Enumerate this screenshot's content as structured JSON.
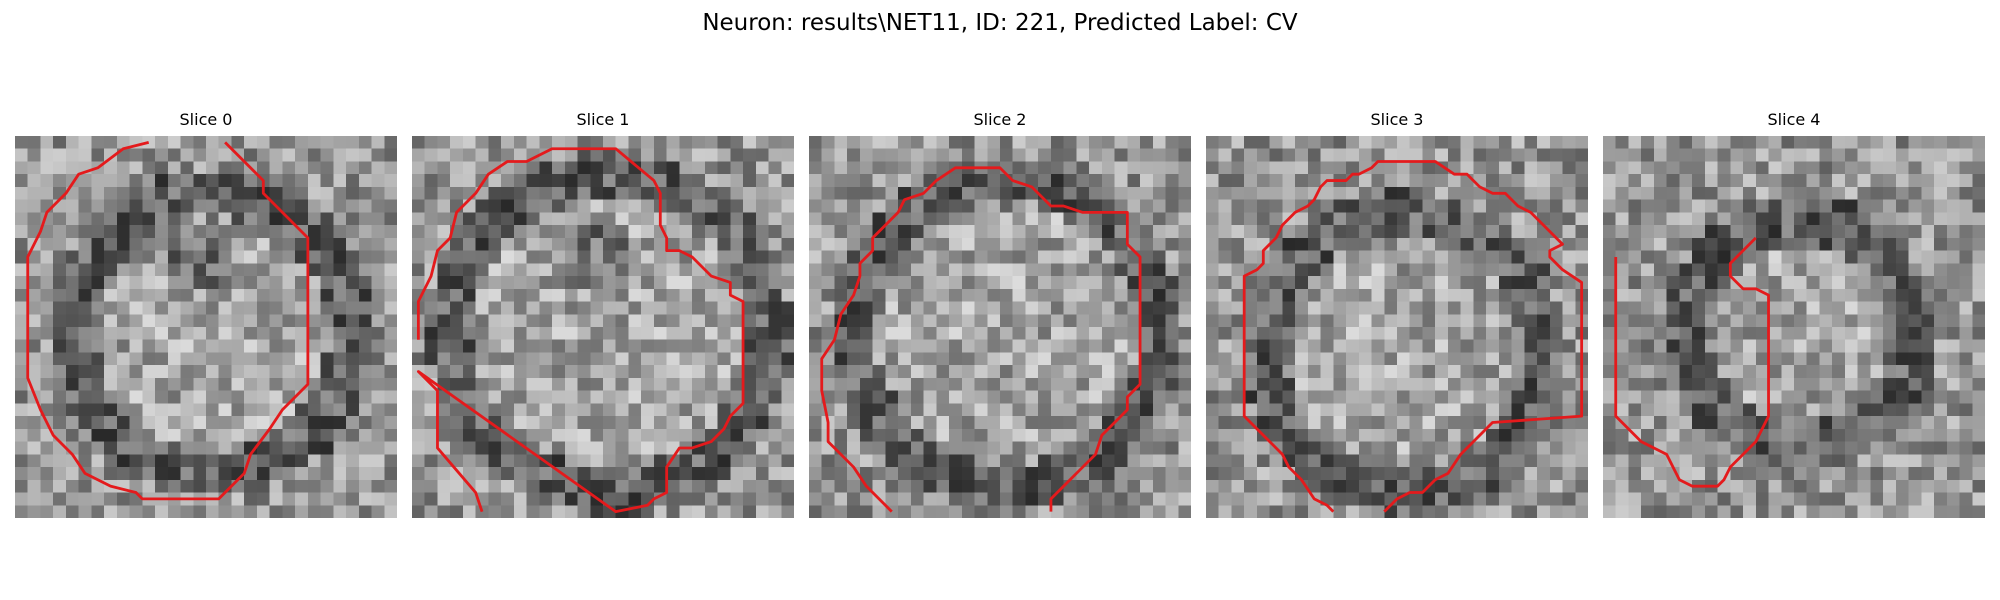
{
  "figure": {
    "title": "Neuron: results\\NET11, ID: 221, Predicted Label: CV"
  },
  "colors": {
    "contour": "#e41a1c"
  },
  "grid_size": 30,
  "slices": [
    {
      "label": "Slice 0",
      "seed": 11,
      "contour": [
        [
          10.5,
          0.5
        ],
        [
          8.5,
          1
        ],
        [
          6.5,
          2.5
        ],
        [
          5,
          3
        ],
        [
          4,
          4.5
        ],
        [
          2.5,
          6
        ],
        [
          2,
          7.5
        ],
        [
          1,
          9.5
        ],
        [
          1,
          19
        ],
        [
          2,
          21.5
        ],
        [
          3,
          23.5
        ],
        [
          4.5,
          25
        ],
        [
          5.5,
          26.5
        ],
        [
          7.5,
          27.5
        ],
        [
          9.5,
          28
        ],
        [
          10,
          28.5
        ],
        [
          16,
          28.5
        ],
        [
          17.5,
          27
        ],
        [
          18,
          26.5
        ],
        [
          18.5,
          25
        ],
        [
          20,
          23
        ],
        [
          21,
          21.5
        ],
        [
          23,
          19.5
        ],
        [
          23,
          8
        ],
        [
          19.5,
          4.5
        ],
        [
          19.5,
          3.5
        ],
        [
          16.5,
          0.5
        ]
      ]
    },
    {
      "label": "Slice 1",
      "seed": 23,
      "contour": [
        [
          0.5,
          16
        ],
        [
          0.5,
          13
        ],
        [
          1.5,
          11
        ],
        [
          2,
          9
        ],
        [
          3,
          8
        ],
        [
          3.5,
          6
        ],
        [
          5,
          4.5
        ],
        [
          6,
          3
        ],
        [
          7.5,
          2
        ],
        [
          9,
          2
        ],
        [
          11,
          1
        ],
        [
          16,
          1
        ],
        [
          19,
          3.5
        ],
        [
          19.5,
          4.5
        ],
        [
          19.5,
          7
        ],
        [
          20,
          8
        ],
        [
          20,
          9
        ],
        [
          21,
          9
        ],
        [
          22,
          9.5
        ],
        [
          23.5,
          11
        ],
        [
          25,
          11.5
        ],
        [
          25,
          12.5
        ],
        [
          26,
          13
        ],
        [
          26,
          21
        ],
        [
          25,
          22
        ],
        [
          24.5,
          23
        ],
        [
          23.5,
          24
        ],
        [
          22,
          24.5
        ],
        [
          21,
          24.5
        ],
        [
          20,
          26
        ],
        [
          20,
          28
        ],
        [
          19,
          28.5
        ],
        [
          18.5,
          29
        ],
        [
          16,
          29.5
        ],
        [
          0.5,
          18.5
        ],
        [
          2,
          20
        ],
        [
          2,
          24.5
        ],
        [
          5,
          28
        ],
        [
          5.5,
          29.5
        ]
      ]
    },
    {
      "label": "Slice 2",
      "seed": 37,
      "contour": [
        [
          6.5,
          29.5
        ],
        [
          4.5,
          27.5
        ],
        [
          3.5,
          26
        ],
        [
          1.5,
          24
        ],
        [
          1.5,
          22.5
        ],
        [
          1,
          20
        ],
        [
          1,
          17.5
        ],
        [
          2,
          16
        ],
        [
          2.5,
          14
        ],
        [
          3.5,
          12.5
        ],
        [
          4,
          11
        ],
        [
          4,
          10
        ],
        [
          5,
          9
        ],
        [
          5,
          8
        ],
        [
          6,
          7
        ],
        [
          7,
          6
        ],
        [
          7.5,
          5
        ],
        [
          9,
          4.5
        ],
        [
          10,
          3.5
        ],
        [
          11.5,
          2.5
        ],
        [
          15,
          2.5
        ],
        [
          16,
          3.5
        ],
        [
          17.5,
          4
        ],
        [
          19,
          5.5
        ],
        [
          20,
          5.5
        ],
        [
          21.5,
          6
        ],
        [
          25,
          6
        ],
        [
          25,
          8.5
        ],
        [
          26,
          9.5
        ],
        [
          26,
          19.5
        ],
        [
          25,
          20.5
        ],
        [
          25,
          21.5
        ],
        [
          24,
          22.5
        ],
        [
          23,
          23.5
        ],
        [
          22.5,
          25
        ],
        [
          21.5,
          26
        ],
        [
          20,
          27.5
        ],
        [
          19.5,
          28
        ],
        [
          19,
          28.5
        ],
        [
          19,
          29.5
        ]
      ]
    },
    {
      "label": "Slice 3",
      "seed": 53,
      "contour": [
        [
          14,
          29.5
        ],
        [
          15,
          28.5
        ],
        [
          16,
          28
        ],
        [
          17,
          28
        ],
        [
          18,
          27
        ],
        [
          19,
          26.5
        ],
        [
          20,
          25
        ],
        [
          21,
          24
        ],
        [
          21.5,
          23.5
        ],
        [
          22.5,
          22.5
        ],
        [
          29.5,
          22
        ],
        [
          29.5,
          11.5
        ],
        [
          28,
          10.5
        ],
        [
          27,
          9.5
        ],
        [
          27,
          9
        ],
        [
          28,
          8.5
        ],
        [
          26.5,
          7
        ],
        [
          25.5,
          6
        ],
        [
          24.5,
          5.5
        ],
        [
          23.5,
          4.5
        ],
        [
          22.5,
          4.5
        ],
        [
          21.5,
          4
        ],
        [
          20.5,
          3
        ],
        [
          19.5,
          3
        ],
        [
          18,
          2
        ],
        [
          14.5,
          2
        ],
        [
          13.5,
          2
        ],
        [
          13,
          2.5
        ],
        [
          12,
          3
        ],
        [
          11.5,
          3
        ],
        [
          11,
          3.5
        ],
        [
          9.5,
          3.5
        ],
        [
          9,
          4
        ],
        [
          8.5,
          5
        ],
        [
          8,
          5.5
        ],
        [
          7,
          6
        ],
        [
          6.5,
          6.5
        ],
        [
          6,
          7
        ],
        [
          5.5,
          8
        ],
        [
          4.5,
          9
        ],
        [
          4.5,
          10
        ],
        [
          4,
          10.5
        ],
        [
          3,
          11
        ],
        [
          3,
          22
        ],
        [
          4.5,
          23.5
        ],
        [
          5,
          24
        ],
        [
          6,
          25
        ],
        [
          6.5,
          26
        ],
        [
          7.5,
          27
        ],
        [
          8.5,
          28.5
        ],
        [
          9.5,
          29
        ],
        [
          10,
          29.5
        ]
      ]
    },
    {
      "label": "Slice 4",
      "seed": 71,
      "contour": [
        [
          12,
          8
        ],
        [
          11,
          9
        ],
        [
          10,
          10
        ],
        [
          10,
          11
        ],
        [
          11,
          12
        ],
        [
          12,
          12
        ],
        [
          13,
          12.5
        ],
        [
          13,
          12.5
        ],
        [
          13,
          22
        ],
        [
          12.5,
          23
        ],
        [
          12,
          24
        ],
        [
          11,
          25
        ],
        [
          10,
          26
        ],
        [
          9.5,
          27
        ],
        [
          9,
          27.5
        ],
        [
          7,
          27.5
        ],
        [
          6,
          27
        ],
        [
          5.5,
          26
        ],
        [
          5,
          25
        ],
        [
          4,
          24.5
        ],
        [
          3,
          24
        ],
        [
          2,
          23
        ],
        [
          1,
          22
        ],
        [
          1,
          20
        ],
        [
          1,
          19
        ],
        [
          1,
          18
        ],
        [
          1,
          16
        ],
        [
          1,
          15
        ],
        [
          1,
          14
        ],
        [
          1,
          13
        ],
        [
          1,
          12
        ],
        [
          1,
          11
        ],
        [
          1,
          10
        ],
        [
          1,
          9.5
        ]
      ]
    }
  ]
}
